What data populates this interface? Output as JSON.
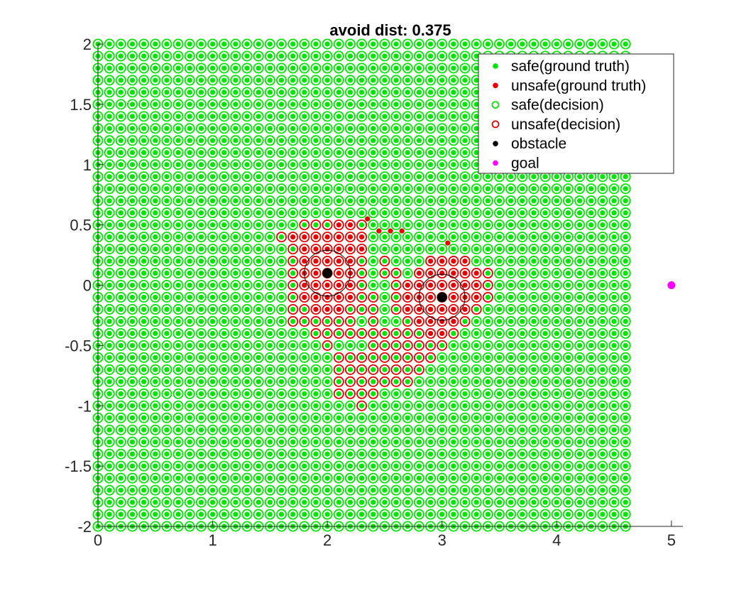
{
  "chart_data": {
    "type": "scatter",
    "title": "avoid dist: 0.375",
    "xlabel": "",
    "ylabel": "",
    "xlim": [
      0,
      5.1
    ],
    "ylim": [
      -2,
      2
    ],
    "xticks": [
      "0",
      "1",
      "2",
      "3",
      "4",
      "5"
    ],
    "yticks": [
      "-2",
      "-1.5",
      "-1",
      "-0.5",
      "0",
      "0.5",
      "1",
      "1.5",
      "2"
    ],
    "xtick_values": [
      0,
      1,
      2,
      3,
      4,
      5
    ],
    "ytick_values": [
      -2,
      -1.5,
      -1,
      -0.5,
      0,
      0.5,
      1,
      1.5,
      2
    ],
    "grid": false,
    "legend_position": "top-right",
    "colors": {
      "safe": "#00e600",
      "unsafe": "#e60000",
      "obstacle": "#000000",
      "goal": "#ff00ff"
    },
    "grid_points": {
      "x_start": 0,
      "x_end": 4.6,
      "y_start": -2,
      "y_end": 2,
      "step": 0.1
    },
    "legend": [
      {
        "label": "safe(ground truth)",
        "marker": "dot",
        "color": "#00e600"
      },
      {
        "label": "unsafe(ground truth)",
        "marker": "dot",
        "color": "#e60000"
      },
      {
        "label": "safe(decision)",
        "marker": "ring",
        "color": "#00e600"
      },
      {
        "label": "unsafe(decision)",
        "marker": "ring",
        "color": "#e60000"
      },
      {
        "label": "obstacle",
        "marker": "dot",
        "color": "#000000"
      },
      {
        "label": "goal",
        "marker": "dot",
        "color": "#ff00ff"
      }
    ],
    "obstacles": [
      {
        "x": 2.0,
        "y": 0.1,
        "radius": 0.2
      },
      {
        "x": 3.0,
        "y": -0.1,
        "radius": 0.2
      }
    ],
    "goal": {
      "x": 5.0,
      "y": 0.0
    },
    "unsafe_decision_points": [
      [
        1.6,
        0.4
      ],
      [
        1.7,
        0.4
      ],
      [
        1.8,
        0.4
      ],
      [
        1.9,
        0.4
      ],
      [
        2.0,
        0.4
      ],
      [
        2.1,
        0.4
      ],
      [
        2.2,
        0.4
      ],
      [
        2.3,
        0.4
      ],
      [
        1.8,
        0.5
      ],
      [
        1.9,
        0.5
      ],
      [
        2.0,
        0.5
      ],
      [
        2.1,
        0.5
      ],
      [
        2.2,
        0.5
      ],
      [
        2.3,
        0.5
      ],
      [
        1.7,
        0.3
      ],
      [
        1.8,
        0.3
      ],
      [
        1.9,
        0.3
      ],
      [
        2.0,
        0.3
      ],
      [
        2.1,
        0.3
      ],
      [
        2.2,
        0.3
      ],
      [
        2.3,
        0.3
      ],
      [
        1.7,
        0.2
      ],
      [
        1.8,
        0.2
      ],
      [
        1.9,
        0.2
      ],
      [
        2.0,
        0.2
      ],
      [
        2.1,
        0.2
      ],
      [
        2.2,
        0.2
      ],
      [
        2.3,
        0.2
      ],
      [
        2.5,
        0.2
      ],
      [
        2.9,
        0.2
      ],
      [
        3.0,
        0.2
      ],
      [
        3.1,
        0.2
      ],
      [
        3.2,
        0.2
      ],
      [
        1.7,
        0.1
      ],
      [
        1.8,
        0.1
      ],
      [
        1.9,
        0.1
      ],
      [
        2.0,
        0.1
      ],
      [
        2.1,
        0.1
      ],
      [
        2.2,
        0.1
      ],
      [
        2.3,
        0.1
      ],
      [
        2.5,
        0.1
      ],
      [
        2.6,
        0.1
      ],
      [
        2.8,
        0.1
      ],
      [
        2.9,
        0.1
      ],
      [
        3.0,
        0.1
      ],
      [
        3.1,
        0.1
      ],
      [
        3.2,
        0.1
      ],
      [
        3.3,
        0.1
      ],
      [
        3.4,
        0.1
      ],
      [
        1.7,
        0.0
      ],
      [
        1.8,
        0.0
      ],
      [
        1.9,
        0.0
      ],
      [
        2.0,
        0.0
      ],
      [
        2.1,
        0.0
      ],
      [
        2.2,
        0.0
      ],
      [
        2.3,
        0.0
      ],
      [
        2.6,
        0.0
      ],
      [
        2.7,
        0.0
      ],
      [
        2.8,
        0.0
      ],
      [
        2.9,
        0.0
      ],
      [
        3.0,
        0.0
      ],
      [
        3.1,
        0.0
      ],
      [
        3.2,
        0.0
      ],
      [
        3.3,
        0.0
      ],
      [
        3.4,
        0.0
      ],
      [
        1.7,
        -0.1
      ],
      [
        1.8,
        -0.1
      ],
      [
        1.9,
        -0.1
      ],
      [
        2.0,
        -0.1
      ],
      [
        2.1,
        -0.1
      ],
      [
        2.2,
        -0.1
      ],
      [
        2.3,
        -0.1
      ],
      [
        2.4,
        -0.1
      ],
      [
        2.6,
        -0.1
      ],
      [
        2.7,
        -0.1
      ],
      [
        2.8,
        -0.1
      ],
      [
        2.9,
        -0.1
      ],
      [
        3.0,
        -0.1
      ],
      [
        3.1,
        -0.1
      ],
      [
        3.2,
        -0.1
      ],
      [
        3.3,
        -0.1
      ],
      [
        3.4,
        -0.1
      ],
      [
        1.7,
        -0.2
      ],
      [
        1.8,
        -0.2
      ],
      [
        1.9,
        -0.2
      ],
      [
        2.0,
        -0.2
      ],
      [
        2.1,
        -0.2
      ],
      [
        2.2,
        -0.2
      ],
      [
        2.3,
        -0.2
      ],
      [
        2.4,
        -0.2
      ],
      [
        2.6,
        -0.2
      ],
      [
        2.7,
        -0.2
      ],
      [
        2.8,
        -0.2
      ],
      [
        2.9,
        -0.2
      ],
      [
        3.0,
        -0.2
      ],
      [
        3.1,
        -0.2
      ],
      [
        3.2,
        -0.2
      ],
      [
        3.3,
        -0.2
      ],
      [
        1.7,
        -0.3
      ],
      [
        1.8,
        -0.3
      ],
      [
        1.9,
        -0.3
      ],
      [
        2.0,
        -0.3
      ],
      [
        2.1,
        -0.3
      ],
      [
        2.2,
        -0.3
      ],
      [
        2.4,
        -0.3
      ],
      [
        2.7,
        -0.3
      ],
      [
        2.8,
        -0.3
      ],
      [
        2.9,
        -0.3
      ],
      [
        3.0,
        -0.3
      ],
      [
        3.1,
        -0.3
      ],
      [
        3.2,
        -0.3
      ],
      [
        1.9,
        -0.4
      ],
      [
        2.0,
        -0.4
      ],
      [
        2.1,
        -0.4
      ],
      [
        2.2,
        -0.4
      ],
      [
        2.3,
        -0.4
      ],
      [
        2.4,
        -0.4
      ],
      [
        2.5,
        -0.4
      ],
      [
        2.6,
        -0.4
      ],
      [
        2.7,
        -0.4
      ],
      [
        2.8,
        -0.4
      ],
      [
        2.9,
        -0.4
      ],
      [
        3.0,
        -0.4
      ],
      [
        3.1,
        -0.4
      ],
      [
        2.0,
        -0.5
      ],
      [
        2.4,
        -0.5
      ],
      [
        2.5,
        -0.5
      ],
      [
        2.6,
        -0.5
      ],
      [
        2.7,
        -0.5
      ],
      [
        2.8,
        -0.5
      ],
      [
        2.9,
        -0.5
      ],
      [
        3.0,
        -0.5
      ],
      [
        2.1,
        -0.6
      ],
      [
        2.2,
        -0.6
      ],
      [
        2.3,
        -0.6
      ],
      [
        2.4,
        -0.6
      ],
      [
        2.5,
        -0.6
      ],
      [
        2.6,
        -0.6
      ],
      [
        2.7,
        -0.6
      ],
      [
        2.8,
        -0.6
      ],
      [
        2.9,
        -0.6
      ],
      [
        2.1,
        -0.7
      ],
      [
        2.2,
        -0.7
      ],
      [
        2.3,
        -0.7
      ],
      [
        2.4,
        -0.7
      ],
      [
        2.5,
        -0.7
      ],
      [
        2.6,
        -0.7
      ],
      [
        2.7,
        -0.7
      ],
      [
        2.8,
        -0.7
      ],
      [
        2.1,
        -0.8
      ],
      [
        2.2,
        -0.8
      ],
      [
        2.3,
        -0.8
      ],
      [
        2.4,
        -0.8
      ],
      [
        2.5,
        -0.8
      ],
      [
        2.6,
        -0.8
      ],
      [
        2.7,
        -0.8
      ],
      [
        2.1,
        -0.9
      ],
      [
        2.2,
        -0.9
      ],
      [
        2.3,
        -0.9
      ],
      [
        2.4,
        -0.9
      ],
      [
        2.3,
        -1.0
      ]
    ],
    "unsafe_truth_points": [
      [
        1.7,
        0.4
      ],
      [
        1.8,
        0.4
      ],
      [
        1.9,
        0.4
      ],
      [
        2.0,
        0.4
      ],
      [
        2.1,
        0.4
      ],
      [
        2.2,
        0.4
      ],
      [
        2.3,
        0.4
      ],
      [
        2.45,
        0.45
      ],
      [
        2.55,
        0.45
      ],
      [
        2.65,
        0.45
      ],
      [
        2.1,
        0.5
      ],
      [
        2.2,
        0.5
      ],
      [
        2.35,
        0.55
      ],
      [
        1.8,
        0.3
      ],
      [
        1.9,
        0.3
      ],
      [
        2.0,
        0.3
      ],
      [
        2.1,
        0.3
      ],
      [
        2.2,
        0.3
      ],
      [
        2.3,
        0.3
      ],
      [
        3.05,
        0.35
      ],
      [
        1.8,
        0.2
      ],
      [
        1.9,
        0.2
      ],
      [
        2.0,
        0.2
      ],
      [
        2.1,
        0.2
      ],
      [
        2.2,
        0.2
      ],
      [
        2.9,
        0.2
      ],
      [
        3.0,
        0.2
      ],
      [
        3.1,
        0.2
      ],
      [
        3.2,
        0.2
      ],
      [
        1.8,
        0.1
      ],
      [
        1.9,
        0.1
      ],
      [
        2.1,
        0.1
      ],
      [
        2.2,
        0.1
      ],
      [
        2.8,
        0.1
      ],
      [
        2.9,
        0.1
      ],
      [
        3.0,
        0.1
      ],
      [
        3.1,
        0.1
      ],
      [
        3.2,
        0.1
      ],
      [
        3.3,
        0.1
      ],
      [
        1.8,
        0.0
      ],
      [
        1.9,
        0.0
      ],
      [
        2.0,
        0.0
      ],
      [
        2.1,
        0.0
      ],
      [
        2.2,
        0.0
      ],
      [
        2.7,
        0.0
      ],
      [
        2.8,
        0.0
      ],
      [
        2.9,
        0.0
      ],
      [
        3.0,
        0.0
      ],
      [
        3.1,
        0.0
      ],
      [
        3.2,
        0.0
      ],
      [
        3.3,
        0.0
      ],
      [
        1.8,
        -0.1
      ],
      [
        1.9,
        -0.1
      ],
      [
        2.0,
        -0.1
      ],
      [
        2.1,
        -0.1
      ],
      [
        2.2,
        -0.1
      ],
      [
        2.7,
        -0.1
      ],
      [
        2.8,
        -0.1
      ],
      [
        2.9,
        -0.1
      ],
      [
        3.1,
        -0.1
      ],
      [
        3.2,
        -0.1
      ],
      [
        3.3,
        -0.1
      ],
      [
        1.9,
        -0.2
      ],
      [
        2.0,
        -0.2
      ],
      [
        2.1,
        -0.2
      ],
      [
        2.7,
        -0.2
      ],
      [
        2.8,
        -0.2
      ],
      [
        2.9,
        -0.2
      ],
      [
        3.0,
        -0.2
      ],
      [
        3.1,
        -0.2
      ],
      [
        3.2,
        -0.2
      ],
      [
        2.8,
        -0.3
      ],
      [
        2.9,
        -0.3
      ],
      [
        3.0,
        -0.3
      ],
      [
        3.1,
        -0.3
      ],
      [
        2.9,
        -0.4
      ],
      [
        3.0,
        -0.4
      ]
    ]
  }
}
